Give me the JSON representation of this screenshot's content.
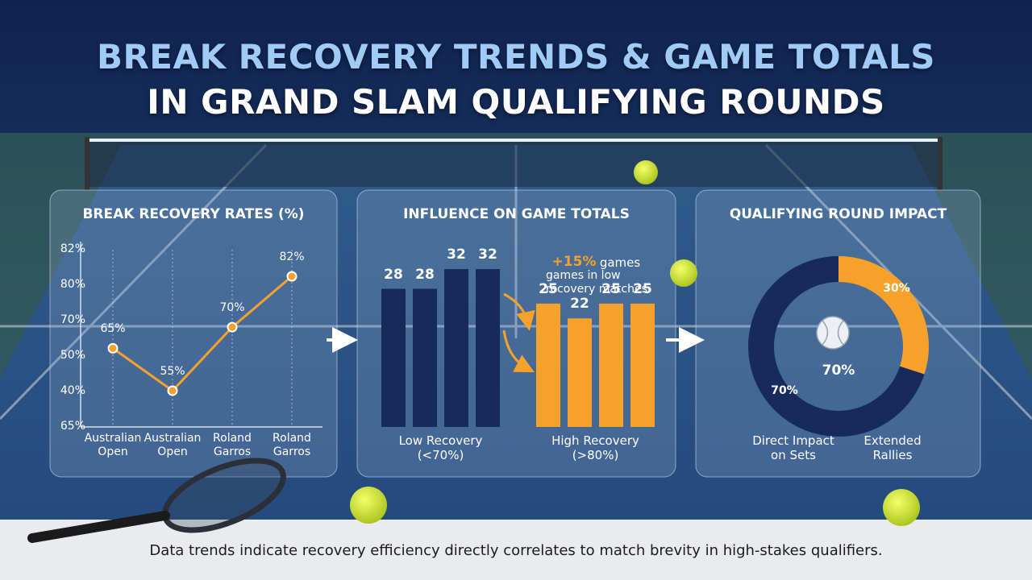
{
  "header": {
    "line1": "BREAK RECOVERY TRENDS & GAME TOTALS",
    "line2": "IN GRAND SLAM QUALIFYING ROUNDS"
  },
  "chart_data": [
    {
      "type": "line",
      "title": "BREAK RECOVERY RATES (%)",
      "categories": [
        "Australian Open",
        "Australian Open",
        "Roland Garros",
        "Roland Garros"
      ],
      "values": [
        65,
        55,
        70,
        82
      ],
      "value_labels": [
        "65%",
        "55%",
        "70%",
        "82%"
      ],
      "color": "#f5a12a",
      "y_axis_labels": [
        "82%",
        "80%",
        "70%",
        "50%",
        "40%",
        "65%"
      ]
    },
    {
      "type": "bar",
      "title": "INFLUENCE ON GAME TOTALS",
      "series": [
        {
          "name": "Low Recovery (<70%)",
          "color": "#172a5e",
          "values": [
            28,
            28,
            32,
            32
          ]
        },
        {
          "name": "High Recovery (>80%)",
          "color": "#f5a12a",
          "values": [
            25,
            22,
            25,
            25
          ]
        }
      ],
      "annotation": {
        "highlight": "+15%",
        "text1": "games",
        "text2": "games in low recovery matches"
      }
    },
    {
      "type": "donut",
      "title": "QUALIFYING ROUND IMPACT",
      "categories": [
        "Direct Impact on Sets",
        "Extended Rallies"
      ],
      "values": [
        70,
        30
      ],
      "value_labels": [
        "70%",
        "30%"
      ],
      "colors": [
        "#172a5e",
        "#f5a12a"
      ],
      "center_label": "70%"
    }
  ],
  "footer": "Data trends indicate recovery efficiency directly correlates to match brevity in high-stakes qualifiers."
}
